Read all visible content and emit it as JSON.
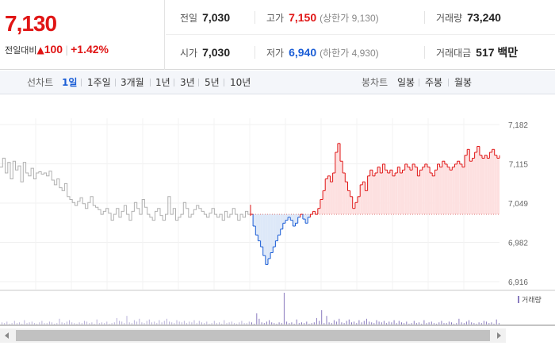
{
  "quote": {
    "price": "7,130",
    "change_label": "전일대비",
    "change_arrow": "▲",
    "change_value": "100",
    "change_pct": "+1.42%",
    "prev_close": {
      "label": "전일",
      "value": "7,030"
    },
    "open": {
      "label": "시가",
      "value": "7,030"
    },
    "high": {
      "label": "고가",
      "value": "7,150",
      "sub": "(상한가 9,130)"
    },
    "low": {
      "label": "저가",
      "value": "6,940",
      "sub": "(하한가 4,930)"
    },
    "volume": {
      "label": "거래량",
      "value": "73,240"
    },
    "turnover": {
      "label": "거래대금",
      "value": "517 백만"
    }
  },
  "tabs": {
    "line_label": "선차트",
    "line_tabs": [
      "1일",
      "1주일",
      "3개월",
      "1년",
      "3년",
      "5년",
      "10년"
    ],
    "active": "1일",
    "candle_label": "봉차트",
    "candle_tabs": [
      "일봉",
      "주봉",
      "월봉"
    ]
  },
  "colors": {
    "up": "#e01515",
    "down": "#1a5dd6",
    "prev": "#b0b0b0",
    "up_fill": "#fde0e0",
    "down_fill": "#dde8f8",
    "volume": "#8a7bbf"
  },
  "chart_data": {
    "type": "line",
    "y_ticks": [
      "7,182",
      "7,115",
      "7,049",
      "6,982",
      "6,916"
    ],
    "ylim": [
      6916,
      7182
    ],
    "baseline": 7030,
    "volume_legend": "거래량",
    "prev_day_series": [
      7110,
      7125,
      7100,
      7118,
      7090,
      7120,
      7105,
      7112,
      7085,
      7118,
      7100,
      7095,
      7108,
      7090,
      7100,
      7102,
      7098,
      7100,
      7095,
      7103,
      7088,
      7080,
      7090,
      7075,
      7070,
      7082,
      7060,
      7055,
      7050,
      7045,
      7052,
      7058,
      7048,
      7040,
      7050,
      7060,
      7045,
      7042,
      7038,
      7030,
      7035,
      7040,
      7032,
      7020,
      7030,
      7040,
      7025,
      7035,
      7045,
      7030,
      7020,
      7035,
      7050,
      7040,
      7030,
      7055,
      7042,
      7030,
      7025,
      7020,
      7035,
      7040,
      7028,
      7020,
      7030,
      7060,
      7030,
      7040,
      7020,
      7025,
      7030,
      7050,
      7040,
      7025,
      7030,
      7038,
      7045,
      7040,
      7035,
      7030,
      7025,
      7032,
      7040,
      7030,
      7025,
      7030,
      7020,
      7035,
      7025,
      7030,
      7040,
      7030,
      7020,
      7030,
      7025,
      7035,
      7030,
      7040
    ],
    "today_series": [
      7030,
      7010,
      6995,
      6985,
      6975,
      6960,
      6945,
      6955,
      6965,
      6975,
      6985,
      6995,
      7005,
      7015,
      7020,
      7025,
      7020,
      7010,
      7015,
      7025,
      7030,
      7022,
      7015,
      7025,
      7030,
      7035,
      7030,
      7040,
      7055,
      7070,
      7090,
      7095,
      7085,
      7100,
      7135,
      7150,
      7120,
      7100,
      7085,
      7070,
      7060,
      7040,
      7050,
      7060,
      7080,
      7085,
      7070,
      7095,
      7105,
      7095,
      7100,
      7110,
      7100,
      7115,
      7105,
      7100,
      7105,
      7095,
      7100,
      7110,
      7100,
      7105,
      7115,
      7110,
      7105,
      7115,
      7110,
      7095,
      7105,
      7110,
      7115,
      7110,
      7100,
      7095,
      7105,
      7115,
      7110,
      7120,
      7115,
      7110,
      7105,
      7110,
      7115,
      7120,
      7115,
      7110,
      7130,
      7140,
      7120,
      7125,
      7135,
      7145,
      7130,
      7125,
      7130,
      7125,
      7135,
      7140,
      7130,
      7125,
      7130
    ]
  }
}
